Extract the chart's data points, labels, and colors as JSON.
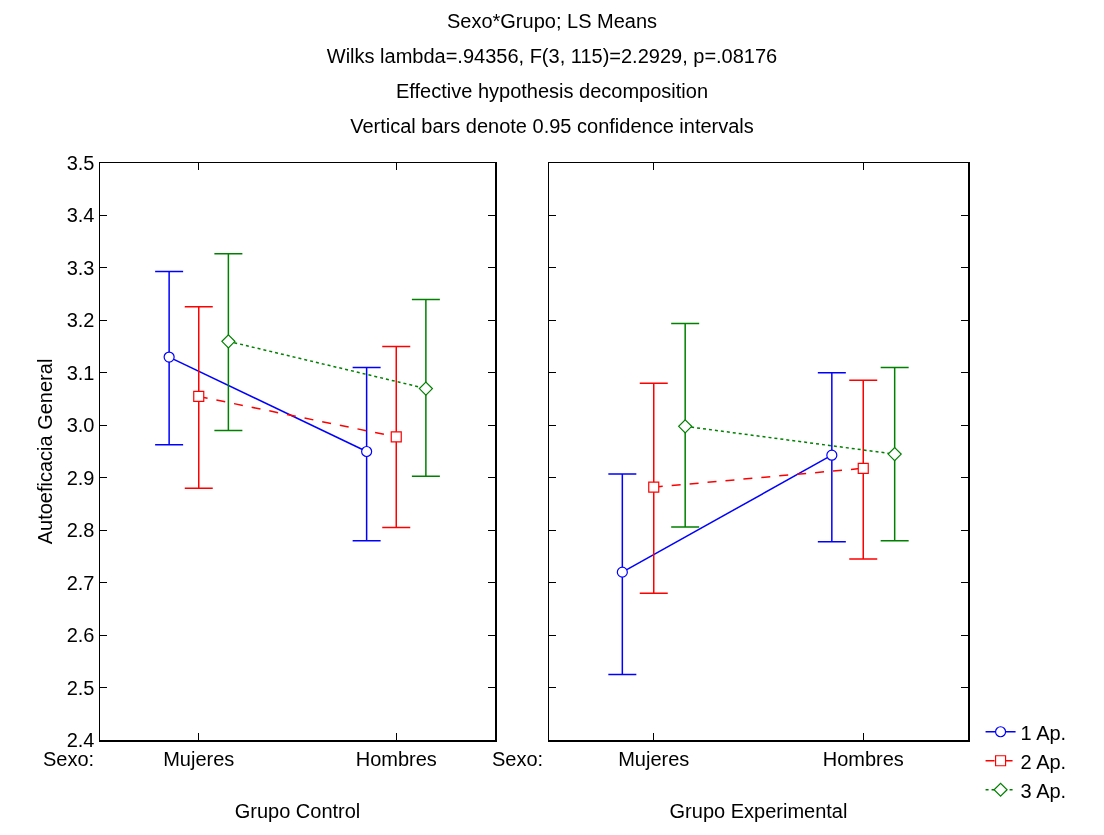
{
  "chart_data": [
    {
      "type": "line",
      "title": "Sexo*Grupo; LS Means",
      "subtitle": "Wilks lambda=.94356, F(3, 115)=2.2929, p=.08176\nEffective hypothesis decomposition\nVertical bars denote 0.95 confidence intervals",
      "xlabel": "Grupo Control",
      "ylabel": "Autoeficacia General",
      "annotations": [
        "Sexo:"
      ],
      "categories": [
        "Mujeres",
        "Hombres"
      ],
      "ylim": [
        2.4,
        3.5
      ],
      "yticks": [
        2.4,
        2.5,
        2.6,
        2.7,
        2.8,
        2.9,
        {
          "value": 3,
          "label": "3.0"
        },
        3.1,
        3.2,
        3.3,
        3.4,
        3.5
      ],
      "legend": false,
      "series": [
        {
          "color": "#0000ff",
          "marker": "circle",
          "line_style": "solid",
          "values": [
            3.13,
            2.95
          ],
          "errors": [
            [
              2.963,
              3.293
            ],
            [
              2.78,
              3.11
            ]
          ]
        },
        {
          "color": "#ff0000",
          "marker": "square",
          "line_style": "dashed",
          "values": [
            3.055,
            2.978
          ],
          "errors": [
            [
              2.88,
              3.226
            ],
            [
              2.805,
              3.15
            ]
          ]
        },
        {
          "color": "#008000",
          "marker": "diamond",
          "line_style": "dotted",
          "values": [
            3.16,
            3.07
          ],
          "errors": [
            [
              2.99,
              3.327
            ],
            [
              2.903,
              3.24
            ]
          ]
        }
      ]
    },
    {
      "type": "line",
      "xlabel": "Grupo Experimental",
      "annotations": [
        "Sexo:"
      ],
      "categories": [
        "Mujeres",
        "Hombres"
      ],
      "ylim": [
        2.4,
        3.5
      ],
      "yticks": [
        2.4,
        2.5,
        2.6,
        2.7,
        2.8,
        2.9,
        {
          "value": 3,
          "label": null
        },
        3.1,
        3.2,
        3.3,
        3.4,
        3.5
      ],
      "tick_labels": "x",
      "legend": "bottom right",
      "series": [
        {
          "name": "1 Ap.",
          "color": "#0000ff",
          "marker": "circle",
          "line_style": "solid",
          "values": [
            2.72,
            2.943
          ],
          "errors": [
            [
              2.525,
              2.907
            ],
            [
              2.778,
              3.1
            ]
          ]
        },
        {
          "name": "2 Ap.",
          "color": "#ff0000",
          "marker": "square",
          "line_style": "dashed",
          "values": [
            2.882,
            2.918
          ],
          "errors": [
            [
              2.68,
              3.08
            ],
            [
              2.745,
              3.086
            ]
          ]
        },
        {
          "name": "3 Ap.",
          "color": "#008000",
          "marker": "diamond",
          "line_style": "dotted",
          "values": [
            2.998,
            2.945
          ],
          "errors": [
            [
              2.806,
              3.194
            ],
            [
              2.78,
              3.11
            ]
          ]
        }
      ]
    }
  ]
}
